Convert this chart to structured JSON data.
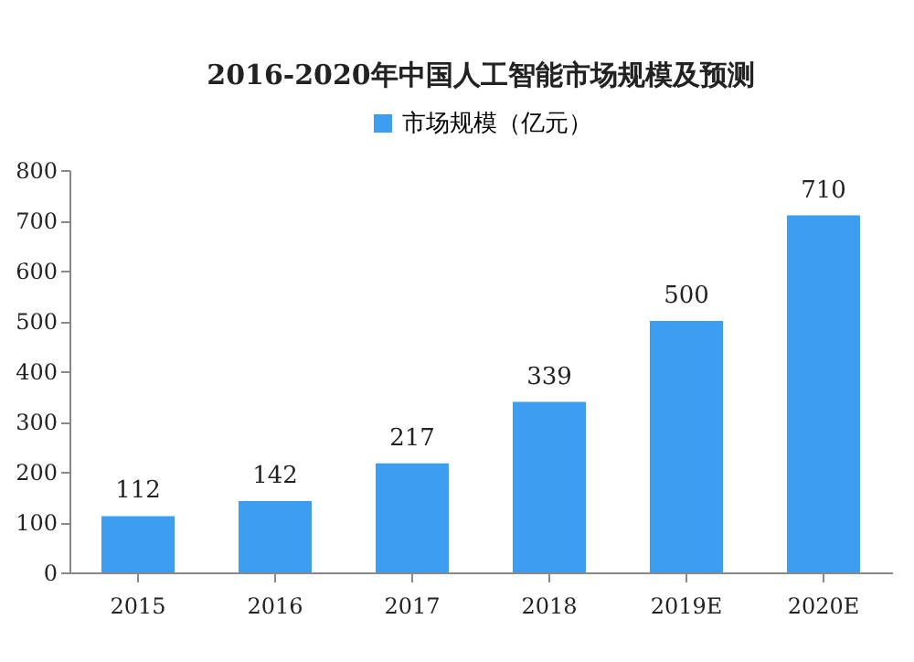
{
  "chart_data": {
    "type": "bar",
    "title": "2016-2020年中国人工智能市场规模及预测",
    "categories": [
      "2015",
      "2016",
      "2017",
      "2018",
      "2019E",
      "2020E"
    ],
    "series": [
      {
        "name": "市场规模（亿元）",
        "color": "#3d9df0",
        "values": [
          112,
          142,
          217,
          339,
          500,
          710
        ]
      }
    ],
    "ylim": [
      0,
      800
    ],
    "yticks": [
      0,
      100,
      200,
      300,
      400,
      500,
      600,
      700,
      800
    ],
    "data_labels": true,
    "legend": "top",
    "grid": false
  }
}
